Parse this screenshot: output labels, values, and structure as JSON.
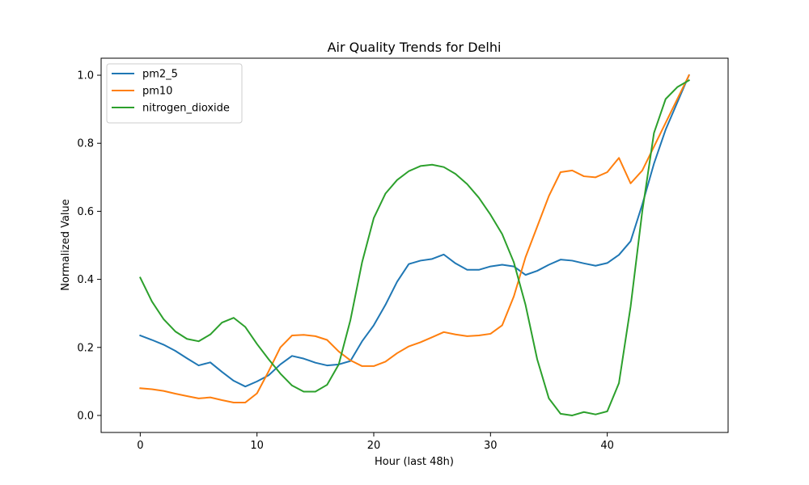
{
  "chart_data": {
    "type": "line",
    "title": "Air Quality Trends for Delhi",
    "xlabel": "Hour (last 48h)",
    "ylabel": "Normalized Value",
    "xlim": [
      -3.35,
      50.35
    ],
    "ylim": [
      -0.05,
      1.05
    ],
    "xticks": [
      0,
      10,
      20,
      30,
      40
    ],
    "xtick_labels": [
      "0",
      "10",
      "20",
      "30",
      "40"
    ],
    "yticks": [
      0.0,
      0.2,
      0.4,
      0.6,
      0.8,
      1.0
    ],
    "ytick_labels": [
      "0.0",
      "0.2",
      "0.4",
      "0.6",
      "0.8",
      "1.0"
    ],
    "grid": false,
    "legend_position": "top-left",
    "x": [
      0,
      1,
      2,
      3,
      4,
      5,
      6,
      7,
      8,
      9,
      10,
      11,
      12,
      13,
      14,
      15,
      16,
      17,
      18,
      19,
      20,
      21,
      22,
      23,
      24,
      25,
      26,
      27,
      28,
      29,
      30,
      31,
      32,
      33,
      34,
      35,
      36,
      37,
      38,
      39,
      40,
      41,
      42,
      43,
      44,
      45,
      46,
      47
    ],
    "series": [
      {
        "name": "pm2_5",
        "color": "#1f77b4",
        "values": [
          0.235,
          0.222,
          0.208,
          0.19,
          0.168,
          0.147,
          0.156,
          0.128,
          0.102,
          0.085,
          0.1,
          0.118,
          0.15,
          0.175,
          0.167,
          0.155,
          0.147,
          0.15,
          0.16,
          0.218,
          0.265,
          0.325,
          0.393,
          0.445,
          0.455,
          0.46,
          0.473,
          0.447,
          0.428,
          0.428,
          0.438,
          0.443,
          0.438,
          0.413,
          0.425,
          0.443,
          0.458,
          0.455,
          0.447,
          0.44,
          0.448,
          0.472,
          0.512,
          0.62,
          0.74,
          0.84,
          0.92,
          1.0
        ]
      },
      {
        "name": "pm10",
        "color": "#ff7f0e",
        "values": [
          0.08,
          0.077,
          0.072,
          0.064,
          0.057,
          0.05,
          0.053,
          0.045,
          0.038,
          0.038,
          0.065,
          0.13,
          0.2,
          0.235,
          0.237,
          0.233,
          0.222,
          0.188,
          0.162,
          0.145,
          0.145,
          0.158,
          0.183,
          0.203,
          0.215,
          0.23,
          0.245,
          0.238,
          0.233,
          0.235,
          0.24,
          0.265,
          0.35,
          0.465,
          0.555,
          0.645,
          0.715,
          0.72,
          0.703,
          0.7,
          0.715,
          0.757,
          0.682,
          0.72,
          0.79,
          0.86,
          0.93,
          1.0
        ]
      },
      {
        "name": "nitrogen_dioxide",
        "color": "#2ca02c",
        "values": [
          0.405,
          0.335,
          0.283,
          0.247,
          0.225,
          0.218,
          0.238,
          0.273,
          0.287,
          0.26,
          0.21,
          0.165,
          0.123,
          0.088,
          0.07,
          0.07,
          0.09,
          0.15,
          0.28,
          0.45,
          0.58,
          0.652,
          0.692,
          0.718,
          0.733,
          0.737,
          0.73,
          0.71,
          0.68,
          0.64,
          0.59,
          0.533,
          0.45,
          0.325,
          0.165,
          0.05,
          0.005,
          0.0,
          0.01,
          0.003,
          0.012,
          0.095,
          0.32,
          0.6,
          0.83,
          0.93,
          0.965,
          0.985
        ]
      }
    ]
  }
}
